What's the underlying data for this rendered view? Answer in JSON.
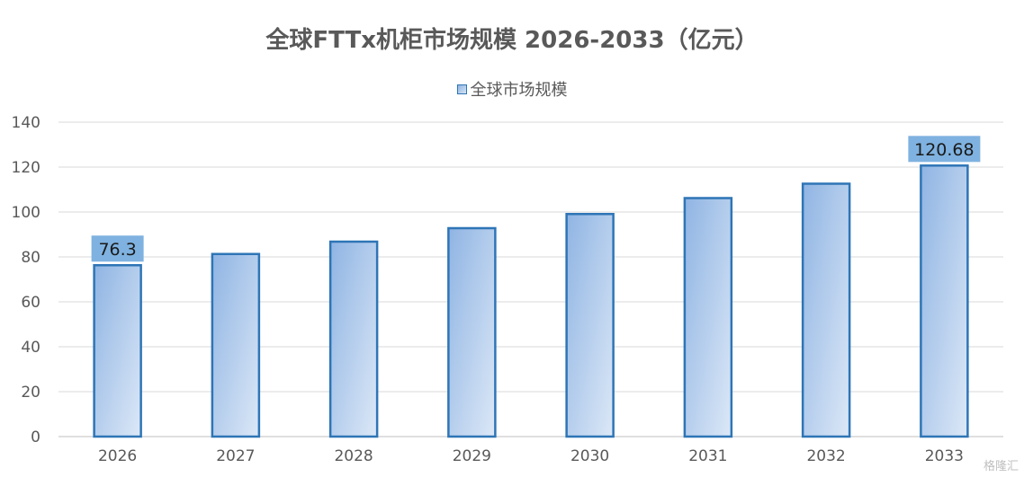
{
  "chart_data": {
    "type": "bar",
    "title": "全球FTTx机柜市场规模 2026-2033（亿元）",
    "categories": [
      "2026",
      "2027",
      "2028",
      "2029",
      "2030",
      "2031",
      "2032",
      "2033"
    ],
    "series": [
      {
        "name": "全球市场规模",
        "values": [
          76.3,
          81.3,
          86.8,
          92.8,
          99.1,
          106.2,
          112.6,
          120.68
        ]
      }
    ],
    "data_labels": [
      {
        "category": "2026",
        "text": "76.3"
      },
      {
        "category": "2033",
        "text": "120.68"
      }
    ],
    "ylim": [
      0,
      140
    ],
    "yticks": [
      "0",
      "20",
      "40",
      "60",
      "80",
      "100",
      "120",
      "140"
    ],
    "xlabel": "",
    "ylabel": "",
    "grid": true,
    "legend_position": "top",
    "colors": {
      "bar_fill_start": "#8fb4e3",
      "bar_fill_end": "#dce8f7",
      "bar_border": "#2e75b6",
      "label_bg": "#7fb2e0",
      "grid": "#d9d9d9",
      "text": "#595959"
    }
  },
  "watermark": "格隆汇"
}
